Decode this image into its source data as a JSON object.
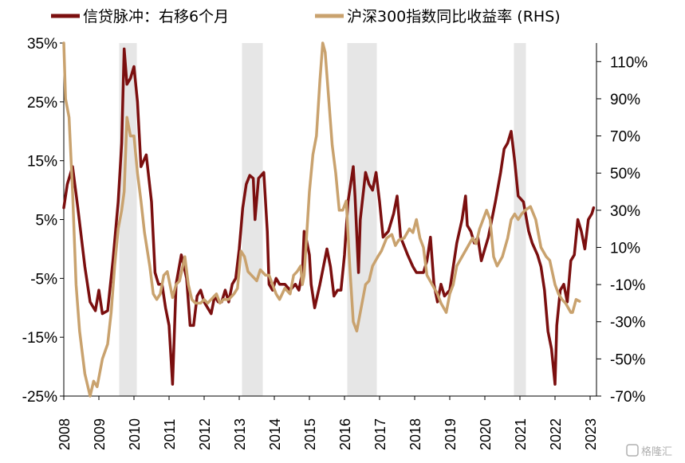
{
  "chart_data": {
    "type": "line",
    "legend": {
      "placement": "top",
      "entries": [
        "信贷脉冲：右移6个月",
        "沪深300指数同比收益率 (RHS)"
      ]
    },
    "x_range": [
      2008.0,
      2023.0
    ],
    "x_ticks": [
      "2008",
      "2009",
      "2010",
      "2011",
      "2012",
      "2013",
      "2014",
      "2015",
      "2016",
      "2017",
      "2018",
      "2019",
      "2020",
      "2021",
      "2022",
      "2023"
    ],
    "y_left": {
      "ticks": [
        "35%",
        "25%",
        "15%",
        "5%",
        "-5%",
        "-15%",
        "-25%"
      ],
      "range": [
        -25,
        35
      ]
    },
    "y_right": {
      "ticks": [
        "110%",
        "90%",
        "70%",
        "50%",
        "30%",
        "10%",
        "-10%",
        "-30%",
        "-50%",
        "-70%"
      ],
      "range": [
        -70,
        120
      ]
    },
    "shaded_periods": [
      [
        2009.58,
        2010.08
      ],
      [
        2013.08,
        2013.67
      ],
      [
        2016.08,
        2016.92
      ],
      [
        2020.83,
        2021.17
      ]
    ],
    "series": [
      {
        "name": "信贷脉冲：右移6个月",
        "axis": "left",
        "color": "#7b0f0f",
        "points": [
          [
            2008.0,
            7
          ],
          [
            2008.1,
            11
          ],
          [
            2008.25,
            14
          ],
          [
            2008.4,
            7
          ],
          [
            2008.6,
            -3
          ],
          [
            2008.75,
            -9
          ],
          [
            2008.9,
            -10.5
          ],
          [
            2009.0,
            -7
          ],
          [
            2009.1,
            -11
          ],
          [
            2009.25,
            -10.5
          ],
          [
            2009.4,
            -2
          ],
          [
            2009.55,
            8
          ],
          [
            2009.65,
            18
          ],
          [
            2009.72,
            34
          ],
          [
            2009.8,
            28
          ],
          [
            2009.9,
            29
          ],
          [
            2010.0,
            31
          ],
          [
            2010.1,
            25
          ],
          [
            2010.2,
            14
          ],
          [
            2010.35,
            16
          ],
          [
            2010.5,
            8
          ],
          [
            2010.6,
            -4
          ],
          [
            2010.7,
            -6
          ],
          [
            2010.8,
            -6
          ],
          [
            2010.9,
            -10
          ],
          [
            2011.0,
            -13
          ],
          [
            2011.1,
            -23
          ],
          [
            2011.2,
            -6
          ],
          [
            2011.35,
            -1
          ],
          [
            2011.5,
            -5
          ],
          [
            2011.6,
            -13
          ],
          [
            2011.7,
            -13
          ],
          [
            2011.8,
            -8
          ],
          [
            2011.9,
            -7
          ],
          [
            2012.0,
            -9
          ],
          [
            2012.1,
            -10
          ],
          [
            2012.2,
            -11
          ],
          [
            2012.3,
            -8
          ],
          [
            2012.4,
            -9
          ],
          [
            2012.5,
            -9
          ],
          [
            2012.6,
            -7
          ],
          [
            2012.7,
            -9
          ],
          [
            2012.8,
            -6
          ],
          [
            2012.9,
            -5
          ],
          [
            2013.0,
            0
          ],
          [
            2013.1,
            7
          ],
          [
            2013.2,
            11
          ],
          [
            2013.3,
            12.5
          ],
          [
            2013.4,
            12
          ],
          [
            2013.45,
            5
          ],
          [
            2013.55,
            12
          ],
          [
            2013.7,
            13
          ],
          [
            2013.8,
            3
          ],
          [
            2013.85,
            -6
          ],
          [
            2013.95,
            -7
          ],
          [
            2014.05,
            -5
          ],
          [
            2014.15,
            -6
          ],
          [
            2014.3,
            -6
          ],
          [
            2014.45,
            -7
          ],
          [
            2014.6,
            -6
          ],
          [
            2014.7,
            -7
          ],
          [
            2014.8,
            -4
          ],
          [
            2014.85,
            3
          ],
          [
            2014.9,
            2
          ],
          [
            2015.0,
            -1
          ],
          [
            2015.05,
            -6
          ],
          [
            2015.15,
            -10
          ],
          [
            2015.3,
            -6
          ],
          [
            2015.5,
            0
          ],
          [
            2015.6,
            -3
          ],
          [
            2015.7,
            -8
          ],
          [
            2015.8,
            -7
          ],
          [
            2015.9,
            -7
          ],
          [
            2016.0,
            -1
          ],
          [
            2016.1,
            8
          ],
          [
            2016.25,
            14
          ],
          [
            2016.3,
            9
          ],
          [
            2016.4,
            -4
          ],
          [
            2016.45,
            5
          ],
          [
            2016.6,
            13
          ],
          [
            2016.7,
            11
          ],
          [
            2016.8,
            10
          ],
          [
            2016.9,
            13
          ],
          [
            2017.0,
            8
          ],
          [
            2017.1,
            2
          ],
          [
            2017.25,
            3
          ],
          [
            2017.4,
            6
          ],
          [
            2017.5,
            9
          ],
          [
            2017.6,
            2
          ],
          [
            2017.8,
            -1
          ],
          [
            2017.95,
            -3
          ],
          [
            2018.05,
            -4
          ],
          [
            2018.15,
            -4
          ],
          [
            2018.25,
            -4
          ],
          [
            2018.35,
            -2
          ],
          [
            2018.45,
            2
          ],
          [
            2018.55,
            -6
          ],
          [
            2018.65,
            -9
          ],
          [
            2018.75,
            -6
          ],
          [
            2018.85,
            -8
          ],
          [
            2019.0,
            -7
          ],
          [
            2019.05,
            -5
          ],
          [
            2019.1,
            -3
          ],
          [
            2019.2,
            1
          ],
          [
            2019.35,
            5
          ],
          [
            2019.45,
            9
          ],
          [
            2019.5,
            4
          ],
          [
            2019.6,
            3
          ],
          [
            2019.7,
            1
          ],
          [
            2019.8,
            2
          ],
          [
            2019.9,
            -2
          ],
          [
            2020.0,
            0
          ],
          [
            2020.1,
            2
          ],
          [
            2020.3,
            8
          ],
          [
            2020.45,
            13
          ],
          [
            2020.55,
            17
          ],
          [
            2020.65,
            18
          ],
          [
            2020.75,
            20
          ],
          [
            2020.85,
            15
          ],
          [
            2020.95,
            9
          ],
          [
            2021.1,
            8
          ],
          [
            2021.25,
            3
          ],
          [
            2021.35,
            1
          ],
          [
            2021.5,
            -1
          ],
          [
            2021.6,
            -3
          ],
          [
            2021.7,
            -7
          ],
          [
            2021.8,
            -14
          ],
          [
            2021.9,
            -17
          ],
          [
            2022.0,
            -23
          ],
          [
            2022.05,
            -13
          ],
          [
            2022.15,
            -7
          ],
          [
            2022.25,
            -6
          ],
          [
            2022.35,
            -9
          ],
          [
            2022.45,
            -2
          ],
          [
            2022.55,
            -1
          ],
          [
            2022.65,
            5
          ],
          [
            2022.75,
            3
          ],
          [
            2022.85,
            0
          ],
          [
            2022.95,
            5
          ],
          [
            2023.05,
            6
          ],
          [
            2023.1,
            7
          ]
        ]
      },
      {
        "name": "沪深300指数同比收益率 (RHS)",
        "axis": "right",
        "color": "#c9a26e",
        "points": [
          [
            2008.0,
            120
          ],
          [
            2008.05,
            90
          ],
          [
            2008.15,
            80
          ],
          [
            2008.25,
            40
          ],
          [
            2008.35,
            -10
          ],
          [
            2008.45,
            -35
          ],
          [
            2008.6,
            -58
          ],
          [
            2008.75,
            -70
          ],
          [
            2008.85,
            -62
          ],
          [
            2008.95,
            -65
          ],
          [
            2009.1,
            -50
          ],
          [
            2009.25,
            -42
          ],
          [
            2009.35,
            -25
          ],
          [
            2009.45,
            0
          ],
          [
            2009.55,
            20
          ],
          [
            2009.65,
            30
          ],
          [
            2009.72,
            40
          ],
          [
            2009.8,
            80
          ],
          [
            2009.9,
            70
          ],
          [
            2010.0,
            70
          ],
          [
            2010.1,
            50
          ],
          [
            2010.2,
            35
          ],
          [
            2010.3,
            18
          ],
          [
            2010.45,
            0
          ],
          [
            2010.55,
            -15
          ],
          [
            2010.65,
            -18
          ],
          [
            2010.75,
            -15
          ],
          [
            2010.85,
            -5
          ],
          [
            2010.95,
            -3
          ],
          [
            2011.1,
            -17
          ],
          [
            2011.2,
            -10
          ],
          [
            2011.3,
            -8
          ],
          [
            2011.45,
            5
          ],
          [
            2011.55,
            -10
          ],
          [
            2011.65,
            -18
          ],
          [
            2011.75,
            -20
          ],
          [
            2011.9,
            -20
          ],
          [
            2012.0,
            -18
          ],
          [
            2012.1,
            -20
          ],
          [
            2012.2,
            -18
          ],
          [
            2012.35,
            -15
          ],
          [
            2012.45,
            -20
          ],
          [
            2012.55,
            -18
          ],
          [
            2012.7,
            -18
          ],
          [
            2012.85,
            -15
          ],
          [
            2012.95,
            -12
          ],
          [
            2013.05,
            8
          ],
          [
            2013.15,
            5
          ],
          [
            2013.25,
            -3
          ],
          [
            2013.35,
            -5
          ],
          [
            2013.5,
            -8
          ],
          [
            2013.6,
            -2
          ],
          [
            2013.75,
            -5
          ],
          [
            2013.85,
            -5
          ],
          [
            2013.95,
            -10
          ],
          [
            2014.05,
            -15
          ],
          [
            2014.15,
            -18
          ],
          [
            2014.3,
            -12
          ],
          [
            2014.45,
            -15
          ],
          [
            2014.55,
            -5
          ],
          [
            2014.65,
            -3
          ],
          [
            2014.75,
            0
          ],
          [
            2014.8,
            -10
          ],
          [
            2014.85,
            -5
          ],
          [
            2014.9,
            10
          ],
          [
            2015.0,
            40
          ],
          [
            2015.1,
            60
          ],
          [
            2015.2,
            70
          ],
          [
            2015.3,
            100
          ],
          [
            2015.38,
            120
          ],
          [
            2015.45,
            115
          ],
          [
            2015.55,
            90
          ],
          [
            2015.65,
            65
          ],
          [
            2015.75,
            50
          ],
          [
            2015.85,
            30
          ],
          [
            2015.95,
            30
          ],
          [
            2016.05,
            35
          ],
          [
            2016.15,
            0
          ],
          [
            2016.25,
            -30
          ],
          [
            2016.35,
            -35
          ],
          [
            2016.5,
            -20
          ],
          [
            2016.6,
            -10
          ],
          [
            2016.7,
            -8
          ],
          [
            2016.8,
            0
          ],
          [
            2016.95,
            5
          ],
          [
            2017.05,
            8
          ],
          [
            2017.2,
            15
          ],
          [
            2017.35,
            17
          ],
          [
            2017.45,
            11
          ],
          [
            2017.55,
            14
          ],
          [
            2017.7,
            15
          ],
          [
            2017.85,
            20
          ],
          [
            2017.95,
            18
          ],
          [
            2018.05,
            25
          ],
          [
            2018.15,
            15
          ],
          [
            2018.25,
            10
          ],
          [
            2018.35,
            -5
          ],
          [
            2018.5,
            -10
          ],
          [
            2018.65,
            -15
          ],
          [
            2018.75,
            -20
          ],
          [
            2018.9,
            -25
          ],
          [
            2019.0,
            -15
          ],
          [
            2019.1,
            -10
          ],
          [
            2019.2,
            0
          ],
          [
            2019.35,
            5
          ],
          [
            2019.5,
            10
          ],
          [
            2019.65,
            15
          ],
          [
            2019.75,
            12
          ],
          [
            2019.85,
            20
          ],
          [
            2019.95,
            25
          ],
          [
            2020.05,
            30
          ],
          [
            2020.15,
            25
          ],
          [
            2020.25,
            5
          ],
          [
            2020.35,
            0
          ],
          [
            2020.5,
            5
          ],
          [
            2020.65,
            15
          ],
          [
            2020.75,
            25
          ],
          [
            2020.85,
            28
          ],
          [
            2020.95,
            25
          ],
          [
            2021.05,
            28
          ],
          [
            2021.15,
            30
          ],
          [
            2021.3,
            32
          ],
          [
            2021.45,
            25
          ],
          [
            2021.6,
            10
          ],
          [
            2021.75,
            5
          ],
          [
            2021.85,
            3
          ],
          [
            2022.0,
            -10
          ],
          [
            2022.1,
            -15
          ],
          [
            2022.2,
            -18
          ],
          [
            2022.3,
            -20
          ],
          [
            2022.45,
            -25
          ],
          [
            2022.5,
            -25
          ],
          [
            2022.6,
            -18
          ],
          [
            2022.7,
            -19
          ]
        ]
      }
    ]
  },
  "watermark": "格隆汇"
}
